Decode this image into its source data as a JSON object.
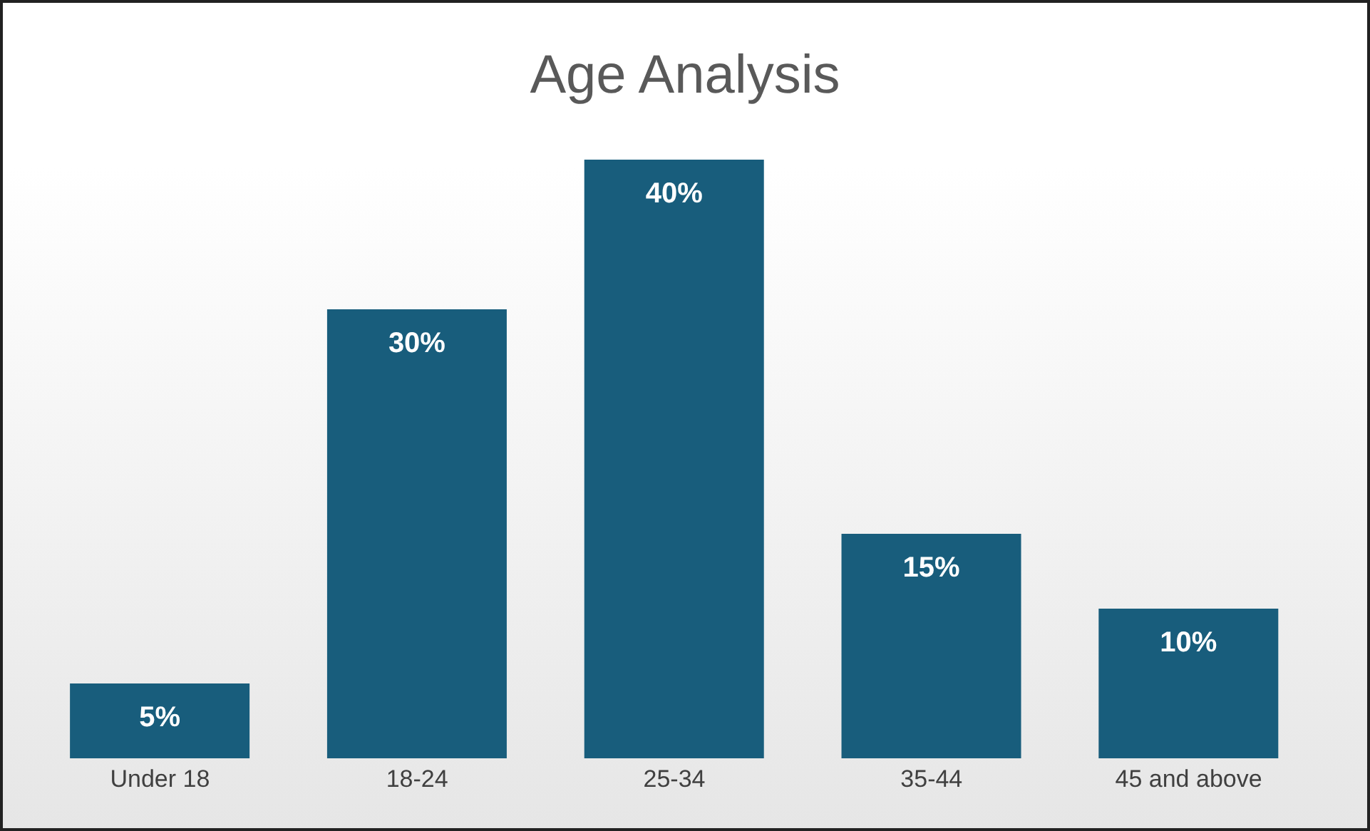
{
  "chart_data": {
    "type": "bar",
    "title": "Age Analysis",
    "categories": [
      "Under 18",
      "18-24",
      "25-34",
      "35-44",
      "45 and above"
    ],
    "values": [
      5,
      30,
      40,
      15,
      10
    ],
    "value_labels": [
      "5%",
      "30%",
      "40%",
      "15%",
      "10%"
    ],
    "color": "#185d7c",
    "grid": false,
    "legend": false
  }
}
